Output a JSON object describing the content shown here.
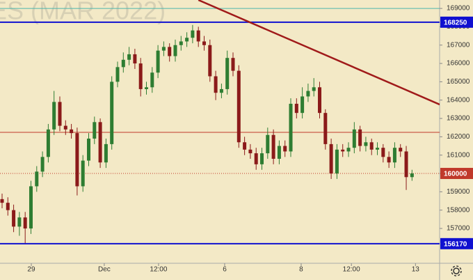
{
  "chart_data": {
    "type": "candlestick",
    "title": "ES (MAR 2022)",
    "x": [
      0,
      1,
      2,
      3,
      4,
      5,
      6,
      7,
      8,
      9,
      10,
      11,
      12,
      13,
      14,
      15,
      16,
      17,
      18,
      19,
      20,
      21,
      22,
      23,
      24,
      25,
      26,
      27,
      28,
      29,
      30,
      31,
      32,
      33,
      34,
      35,
      36,
      37,
      38,
      39,
      40,
      41,
      42,
      43,
      44,
      45,
      46,
      47,
      48,
      49,
      50,
      51,
      52,
      53,
      54,
      55,
      56,
      57,
      58,
      59,
      60,
      61,
      62,
      63,
      64,
      65,
      66,
      67,
      68,
      69,
      70,
      71
    ],
    "open": [
      158600,
      158400,
      158000,
      157100,
      157600,
      157000,
      159300,
      160100,
      160900,
      162400,
      163900,
      162600,
      162400,
      162200,
      159300,
      160700,
      161900,
      162800,
      160600,
      161600,
      165000,
      165800,
      166200,
      166500,
      166000,
      164600,
      164700,
      165500,
      166700,
      166900,
      166400,
      167000,
      167200,
      167400,
      167800,
      167200,
      167000,
      165300,
      164400,
      164600,
      166300,
      165600,
      161700,
      161300,
      161100,
      160500,
      161100,
      162100,
      160800,
      161500,
      161200,
      163800,
      163300,
      164200,
      164500,
      164700,
      163300,
      161600,
      160000,
      161300,
      161200,
      161400,
      162400,
      161500,
      161700,
      161300,
      161400,
      160900,
      160600,
      161400,
      161200,
      159800
    ],
    "high": [
      158900,
      158700,
      158300,
      157900,
      157900,
      159600,
      160400,
      161200,
      162700,
      164500,
      164200,
      162900,
      162700,
      162500,
      161000,
      162200,
      163100,
      163000,
      161900,
      165300,
      166100,
      166600,
      166900,
      166800,
      166300,
      165000,
      165800,
      167000,
      167200,
      167100,
      167300,
      167500,
      167700,
      168100,
      168000,
      167500,
      167300,
      165600,
      164900,
      166700,
      166600,
      165900,
      162000,
      161600,
      161400,
      161400,
      162500,
      162400,
      161800,
      161800,
      164100,
      164100,
      164700,
      164900,
      165200,
      165000,
      163500,
      161900,
      161600,
      161600,
      161700,
      162800,
      162600,
      162000,
      161900,
      161700,
      161600,
      161200,
      161700,
      161600,
      161500,
      160200
    ],
    "low": [
      158100,
      157700,
      156800,
      156600,
      156200,
      156700,
      159000,
      159800,
      160600,
      162100,
      162300,
      162100,
      161900,
      158800,
      159000,
      160400,
      161600,
      160300,
      160300,
      161300,
      164700,
      165500,
      165900,
      165700,
      164200,
      164300,
      164400,
      165200,
      166400,
      166100,
      166100,
      166700,
      166900,
      167100,
      166900,
      166700,
      165000,
      164000,
      164100,
      164300,
      165300,
      161400,
      161000,
      160800,
      160200,
      160200,
      160800,
      160500,
      160500,
      160900,
      160900,
      163000,
      163000,
      163900,
      164200,
      163000,
      161300,
      159700,
      159700,
      160900,
      160900,
      161100,
      161200,
      161200,
      161000,
      161000,
      160600,
      160300,
      160300,
      160900,
      159100,
      159600
    ],
    "close": [
      158400,
      158000,
      157100,
      157600,
      157000,
      159300,
      160100,
      160900,
      162400,
      163900,
      162600,
      162400,
      162200,
      159300,
      160700,
      161900,
      162800,
      160600,
      161600,
      165000,
      165800,
      166200,
      166500,
      166000,
      164600,
      164700,
      165500,
      166700,
      166900,
      166400,
      167000,
      167200,
      167400,
      167800,
      167200,
      167000,
      165300,
      164400,
      164600,
      166300,
      165600,
      161700,
      161300,
      161100,
      160500,
      161100,
      162100,
      160800,
      161500,
      161200,
      163800,
      163300,
      164200,
      164500,
      164700,
      163300,
      161600,
      160000,
      161300,
      161200,
      161400,
      162400,
      161500,
      161700,
      161300,
      161400,
      160900,
      160600,
      161400,
      161200,
      159800,
      160000
    ],
    "up_color": "#2e7d32",
    "down_color": "#8b1a1a",
    "background": "#f3e9c6",
    "xlim": [
      -0.36,
      75.78
    ],
    "ylim": [
      155100,
      169460
    ],
    "xticks": [
      {
        "value": 5.06,
        "label": "29"
      },
      {
        "value": 17.7,
        "label": "Dec"
      },
      {
        "value": 27.1,
        "label": "12:00"
      },
      {
        "value": 38.55,
        "label": "6"
      },
      {
        "value": 51.8,
        "label": "8"
      },
      {
        "value": 60.5,
        "label": "12:00"
      },
      {
        "value": 71.6,
        "label": "13"
      }
    ],
    "yticks": [
      157000,
      158000,
      159000,
      160000,
      161000,
      162000,
      163000,
      164000,
      165000,
      166000,
      167000,
      168000,
      169000
    ],
    "levels": [
      {
        "value": 169000,
        "color": "#4db6ac",
        "width": 1,
        "style": "solid",
        "labeled": false
      },
      {
        "value": 168250,
        "color": "#1010d0",
        "width": 2,
        "style": "solid",
        "labeled": true
      },
      {
        "value": 162240,
        "color": "#c0392b",
        "width": 1,
        "style": "solid",
        "labeled": false
      },
      {
        "value": 160000,
        "color": "#c0392b",
        "width": 1,
        "style": "dotted",
        "labeled": true
      },
      {
        "value": 156170,
        "color": "#1010d0",
        "width": 2,
        "style": "solid",
        "labeled": true
      }
    ],
    "trendline": {
      "color": "#a01a1a",
      "x": [
        34,
        75.8
      ],
      "y": [
        169460,
        163760
      ]
    }
  }
}
